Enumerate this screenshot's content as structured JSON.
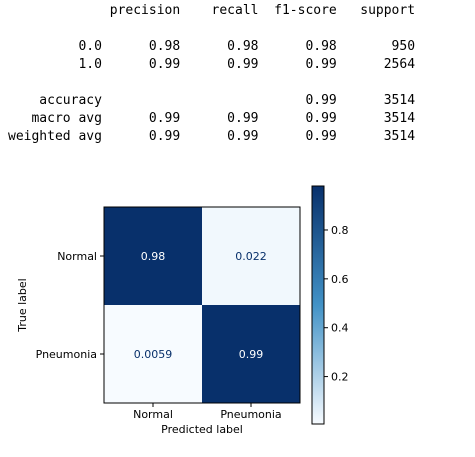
{
  "report": {
    "headers": [
      "precision",
      "recall",
      "f1-score",
      "support"
    ],
    "rows": [
      {
        "label": "0.0",
        "cells": [
          "0.98",
          "0.98",
          "0.98",
          "950"
        ]
      },
      {
        "label": "1.0",
        "cells": [
          "0.99",
          "0.99",
          "0.99",
          "2564"
        ]
      },
      {
        "label": "",
        "cells": [
          "",
          "",
          "",
          ""
        ]
      },
      {
        "label": "accuracy",
        "cells": [
          "",
          "",
          "0.99",
          "3514"
        ]
      },
      {
        "label": "macro avg",
        "cells": [
          "0.99",
          "0.99",
          "0.99",
          "3514"
        ]
      },
      {
        "label": "weighted avg",
        "cells": [
          "0.99",
          "0.99",
          "0.99",
          "3514"
        ]
      }
    ]
  },
  "chart_data": {
    "type": "heatmap",
    "title": "",
    "xlabel": "Predicted label",
    "ylabel": "True label",
    "x_categories": [
      "Normal",
      "Pneumonia"
    ],
    "y_categories": [
      "Normal",
      "Pneumonia"
    ],
    "values": [
      [
        0.98,
        0.022
      ],
      [
        0.0059,
        0.99
      ]
    ],
    "value_labels": [
      [
        "0.98",
        "0.022"
      ],
      [
        "0.0059",
        "0.99"
      ]
    ],
    "colormap": "Blues",
    "colorbar": {
      "range": [
        0.0059,
        0.98
      ],
      "ticks": [
        0.2,
        0.4,
        0.6,
        0.8
      ],
      "tick_labels": [
        "0.2",
        "0.4",
        "0.6",
        "0.8"
      ]
    },
    "colors": {
      "low": "#f7fbff",
      "high": "#08306b",
      "text_dark": "#08306b",
      "text_light": "#ffffff"
    }
  }
}
